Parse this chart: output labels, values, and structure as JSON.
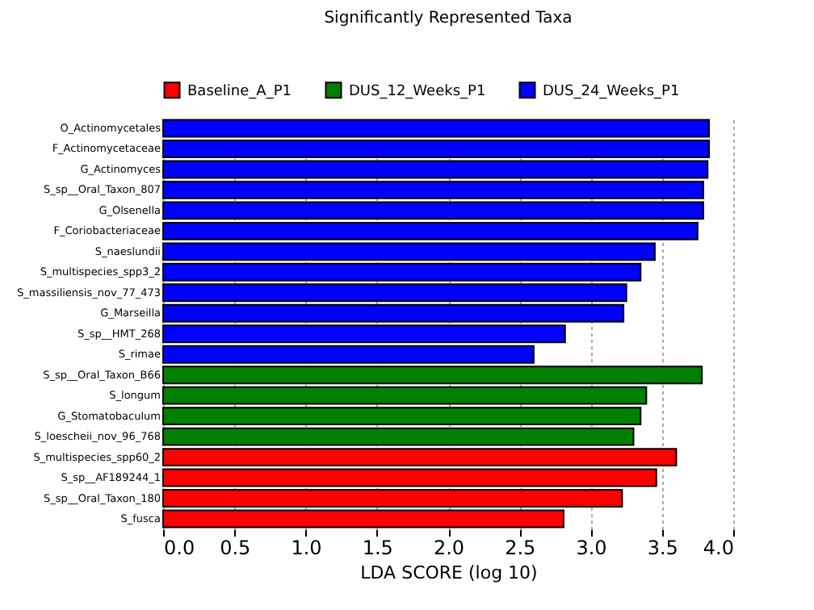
{
  "chart_data": {
    "type": "bar",
    "orientation": "horizontal",
    "title": "Significantly Represented Taxa",
    "xlabel": "LDA SCORE (log 10)",
    "categories": [
      "O_Actinomycetales",
      "F_Actinomycetaceae",
      "G_Actinomyces",
      "S_sp__Oral_Taxon_807",
      "G_Olsenella",
      "F_Coriobacteriaceae",
      "S_naeslundii",
      "S_multispecies_spp3_2",
      "S_massiliensis_nov_77_473",
      "G_Marseilla",
      "S_sp__HMT_268",
      "S_rimae",
      "S_sp__Oral_Taxon_B66",
      "S_longum",
      "G_Stomatobaculum",
      "S_loescheii_nov_96_768",
      "S_multispecies_spp60_2",
      "S_sp__AF189244_1",
      "S_sp__Oral_Taxon_180",
      "S_fusca"
    ],
    "series": [
      {
        "name": "Baseline_A_P1",
        "color": "#ff0000",
        "values": [
          null,
          null,
          null,
          null,
          null,
          null,
          null,
          null,
          null,
          null,
          null,
          null,
          null,
          null,
          null,
          null,
          3.6,
          3.46,
          3.22,
          2.81
        ]
      },
      {
        "name": "DUS_12_Weeks_P1",
        "color": "#008000",
        "values": [
          null,
          null,
          null,
          null,
          null,
          null,
          null,
          null,
          null,
          null,
          null,
          null,
          3.78,
          3.39,
          3.35,
          3.3,
          null,
          null,
          null,
          null
        ]
      },
      {
        "name": "DUS_24_Weeks_P1",
        "color": "#0000ff",
        "values": [
          3.83,
          3.83,
          3.82,
          3.79,
          3.79,
          3.75,
          3.45,
          3.35,
          3.25,
          3.23,
          2.82,
          2.6,
          null,
          null,
          null,
          null,
          null,
          null,
          null,
          null
        ]
      }
    ],
    "xlim": [
      0,
      4
    ],
    "xticks": [
      {
        "value": 0,
        "label": "0.0"
      },
      {
        "value": 0.5,
        "label": "0.5"
      },
      {
        "value": 1,
        "label": "1.0"
      },
      {
        "value": 1.5,
        "label": "1.5"
      },
      {
        "value": 2,
        "label": "2.0"
      },
      {
        "value": 2.5,
        "label": "2.5"
      },
      {
        "value": 3,
        "label": "3.0"
      },
      {
        "value": 3.5,
        "label": "3.5"
      },
      {
        "value": 4,
        "label": "4.0"
      }
    ],
    "grid": "x",
    "legend": "top"
  }
}
